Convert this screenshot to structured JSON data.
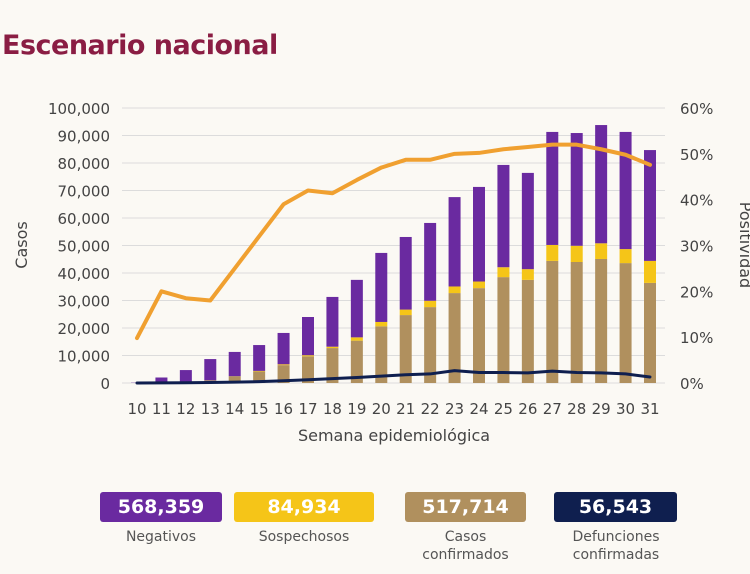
{
  "title": "Escenario nacional",
  "colors": {
    "negativos": "#6a2aa0",
    "sospechosos": "#f5c518",
    "confirmados": "#b0905e",
    "defunciones": "#0f1f4f",
    "positividad": "#f0a030",
    "title": "#8a1d43"
  },
  "chart_data": {
    "type": "bar",
    "stacked": true,
    "xlabel": "Semana epidemiológica",
    "ylabel": "Casos",
    "y2label": "Positividad",
    "ylim": [
      0,
      100000
    ],
    "y2lim": [
      0,
      60
    ],
    "yticks": [
      "0",
      "10,000",
      "20,000",
      "30,000",
      "40,000",
      "50,000",
      "60,000",
      "70,000",
      "80,000",
      "90,000",
      "100,000"
    ],
    "y2ticks": [
      "0%",
      "10%",
      "20%",
      "30%",
      "40%",
      "50%",
      "60%"
    ],
    "grid": true,
    "categories": [
      "10",
      "11",
      "12",
      "13",
      "14",
      "15",
      "16",
      "17",
      "18",
      "19",
      "20",
      "21",
      "22",
      "23",
      "24",
      "25",
      "26",
      "27",
      "28",
      "29",
      "30",
      "31"
    ],
    "series": [
      {
        "key": "confirmados",
        "type": "bar",
        "values": [
          0,
          100,
          300,
          1000,
          2500,
          4200,
          6500,
          9700,
          12700,
          15400,
          20600,
          24700,
          27600,
          32700,
          34500,
          38500,
          37500,
          44400,
          44000,
          45100,
          43600,
          36400
        ]
      },
      {
        "key": "sospechosos",
        "type": "bar",
        "values": [
          0,
          0,
          0,
          0,
          0,
          200,
          300,
          400,
          500,
          1200,
          1600,
          2000,
          2300,
          2400,
          2400,
          3600,
          3900,
          5800,
          5900,
          5700,
          5100,
          8000
        ]
      },
      {
        "key": "negativos",
        "type": "bar",
        "values": [
          100,
          1900,
          4400,
          7700,
          8800,
          9400,
          11400,
          13900,
          18100,
          20900,
          25100,
          26400,
          28300,
          32500,
          34400,
          37200,
          35000,
          41100,
          41000,
          43000,
          42600,
          40300
        ]
      },
      {
        "key": "defunciones",
        "type": "line",
        "axis": "left",
        "values": [
          0,
          50,
          100,
          200,
          300,
          500,
          800,
          1200,
          1600,
          2000,
          2500,
          3000,
          3300,
          4500,
          3800,
          3800,
          3700,
          4300,
          3800,
          3700,
          3300,
          2200
        ]
      },
      {
        "key": "positividad",
        "type": "line",
        "axis": "right",
        "values": [
          9.8,
          20,
          18.5,
          18,
          25,
          32,
          39,
          42,
          41.4,
          44.3,
          47,
          48.7,
          48.7,
          50,
          50.2,
          51,
          51.5,
          52,
          52,
          51,
          49.8,
          47.6
        ]
      }
    ]
  },
  "totals": [
    {
      "value": "568,359",
      "label": "Negativos"
    },
    {
      "value": "84,934",
      "label": "Sospechosos"
    },
    {
      "value": "517,714",
      "label": "Casos confirmados"
    },
    {
      "value": "56,543",
      "label": "Defunciones confirmadas"
    }
  ]
}
